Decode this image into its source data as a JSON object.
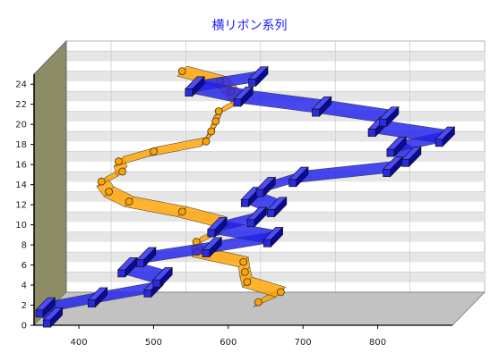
{
  "chart_data": {
    "type": "line",
    "title": "横リボン系列",
    "xlabel": "",
    "ylabel": "",
    "xlim": [
      340,
      900
    ],
    "ylim": [
      0,
      25
    ],
    "x_ticks": [
      "400",
      "500",
      "600",
      "700",
      "800"
    ],
    "y_ticks": [
      "0",
      "2",
      "4",
      "6",
      "8",
      "10",
      "12",
      "14",
      "16",
      "18",
      "20",
      "22",
      "24"
    ],
    "grid": true,
    "series": [
      {
        "name": "",
        "style": "horizontal ribbon with markers",
        "color": "#ffa200",
        "points": [
          {
            "x": 610,
            "y": 0
          },
          {
            "x": 640,
            "y": 1
          },
          {
            "x": 595,
            "y": 2
          },
          {
            "x": 592,
            "y": 3
          },
          {
            "x": 590,
            "y": 4
          },
          {
            "x": 528,
            "y": 5
          },
          {
            "x": 527,
            "y": 6
          },
          {
            "x": 555,
            "y": 7
          },
          {
            "x": 560,
            "y": 8
          },
          {
            "x": 508,
            "y": 9
          },
          {
            "x": 437,
            "y": 10
          },
          {
            "x": 410,
            "y": 11
          },
          {
            "x": 400,
            "y": 12
          },
          {
            "x": 428,
            "y": 13
          },
          {
            "x": 423,
            "y": 14
          },
          {
            "x": 470,
            "y": 15
          },
          {
            "x": 540,
            "y": 16
          },
          {
            "x": 547,
            "y": 17
          },
          {
            "x": 553,
            "y": 18
          },
          {
            "x": 557,
            "y": 19
          },
          {
            "x": 584,
            "y": 20
          },
          {
            "x": 574,
            "y": 21
          },
          {
            "x": 559,
            "y": 22
          },
          {
            "x": 508,
            "y": 23
          }
        ]
      },
      {
        "name": "",
        "style": "horizontal ribbon with box markers",
        "color": "#2020ee",
        "points": [
          {
            "x": 355,
            "y": 0
          },
          {
            "x": 345,
            "y": 1
          },
          {
            "x": 415,
            "y": 2
          },
          {
            "x": 490,
            "y": 3
          },
          {
            "x": 502,
            "y": 4
          },
          {
            "x": 455,
            "y": 5
          },
          {
            "x": 480,
            "y": 6
          },
          {
            "x": 568,
            "y": 7
          },
          {
            "x": 650,
            "y": 8
          },
          {
            "x": 575,
            "y": 9
          },
          {
            "x": 628,
            "y": 10
          },
          {
            "x": 655,
            "y": 11
          },
          {
            "x": 620,
            "y": 12
          },
          {
            "x": 640,
            "y": 13
          },
          {
            "x": 684,
            "y": 14
          },
          {
            "x": 810,
            "y": 15
          },
          {
            "x": 835,
            "y": 16
          },
          {
            "x": 815,
            "y": 17
          },
          {
            "x": 880,
            "y": 18
          },
          {
            "x": 790,
            "y": 19
          },
          {
            "x": 805,
            "y": 20
          },
          {
            "x": 715,
            "y": 21
          },
          {
            "x": 610,
            "y": 22
          },
          {
            "x": 545,
            "y": 23
          },
          {
            "x": 630,
            "y": 24
          }
        ]
      }
    ]
  }
}
